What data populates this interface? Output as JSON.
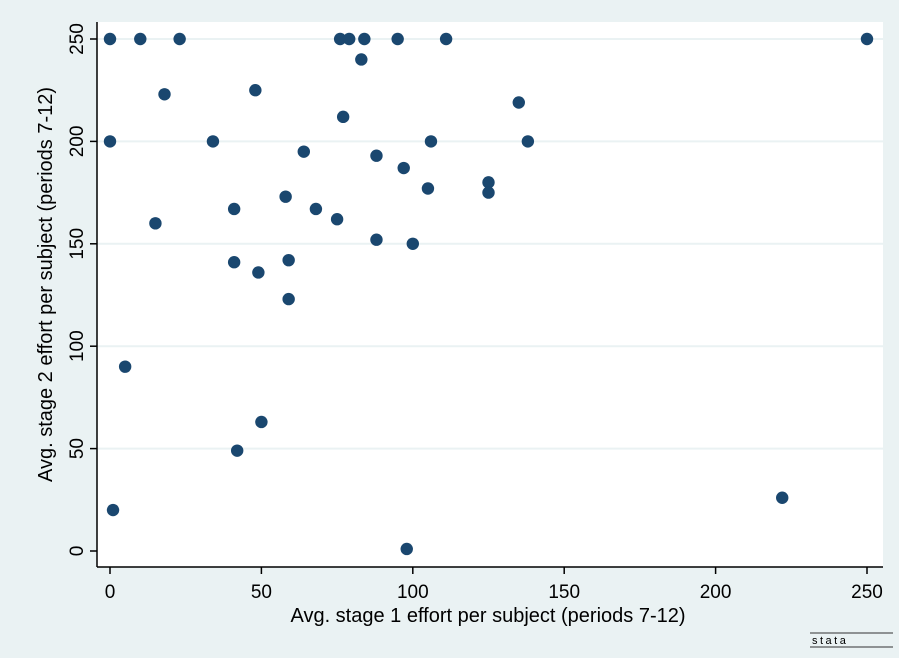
{
  "chart_data": {
    "type": "scatter",
    "xlabel": "Avg. stage 1 effort per subject (periods 7-12)",
    "ylabel": "Avg. stage 2 effort per subject (periods 7-12)",
    "xlim": [
      0,
      250
    ],
    "ylim": [
      0,
      250
    ],
    "xticks": [
      0,
      50,
      100,
      150,
      200,
      250
    ],
    "yticks": [
      0,
      50,
      100,
      150,
      200,
      250
    ],
    "grid": "horizontal",
    "legend": "none",
    "watermark": "stata",
    "colors": {
      "background": "#eaf2f3",
      "plot_area": "#ffffff",
      "marker": "#1a476f",
      "grid": "#eaf2f3",
      "axis": "#000000"
    },
    "series": [
      {
        "x": [
          0,
          10,
          23,
          76,
          79,
          84,
          95,
          111,
          250,
          83,
          18,
          48,
          135,
          77,
          0,
          34,
          106,
          138,
          64,
          88,
          97,
          105,
          125,
          125,
          41,
          58,
          68,
          75,
          15,
          88,
          100,
          41,
          59,
          49,
          59,
          5,
          50,
          42,
          1,
          222,
          98
        ],
        "y": [
          250,
          250,
          250,
          250,
          250,
          250,
          250,
          250,
          250,
          240,
          223,
          225,
          219,
          212,
          200,
          200,
          200,
          200,
          195,
          193,
          187,
          177,
          180,
          175,
          167,
          173,
          167,
          162,
          160,
          152,
          150,
          141,
          142,
          136,
          123,
          90,
          63,
          49,
          20,
          26,
          1
        ]
      }
    ]
  }
}
